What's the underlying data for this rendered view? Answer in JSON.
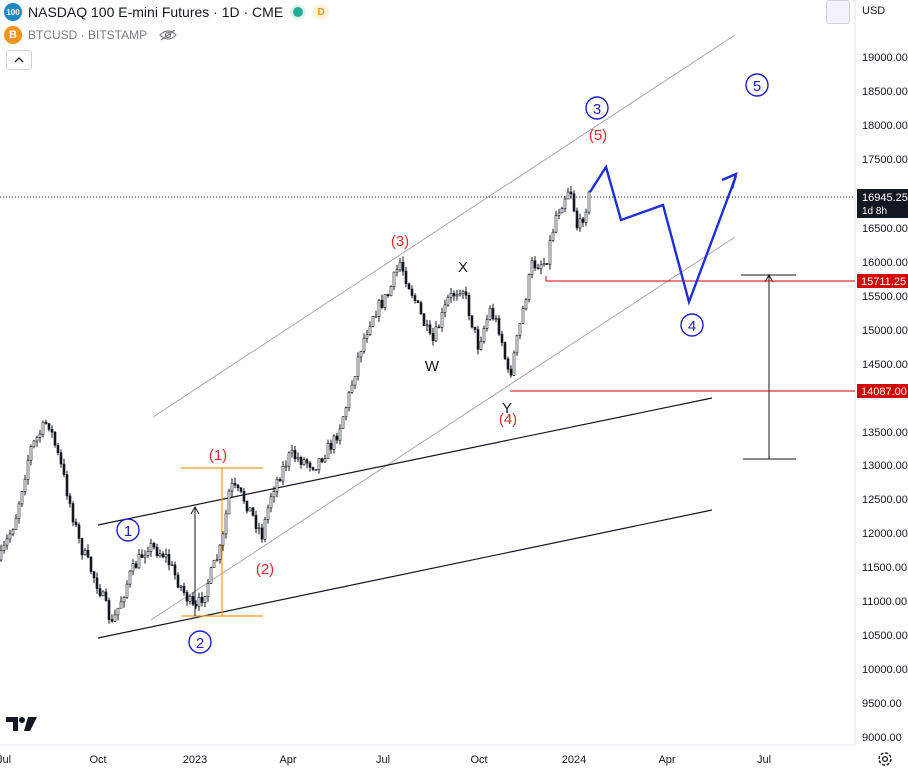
{
  "header": {
    "symbol_badge": "100",
    "title": "NASDAQ 100 E-mini Futures · 1D · CME",
    "status_letter": "D",
    "compare_symbol": "BTCUSD · BITSTAMP",
    "compare_badge": "B"
  },
  "currency": "USD",
  "price_axis": {
    "ticks": [
      "19000.00",
      "18500.00",
      "18000.00",
      "17500.00",
      "16500.00",
      "16000.00",
      "15500.00",
      "15000.00",
      "14500.00",
      "13500.00",
      "13000.00",
      "12500.00",
      "12000.00",
      "11500.00",
      "11000.00",
      "10500.00",
      "10000.00",
      "9500.00",
      "9000.00"
    ],
    "current_price": "16945.25",
    "countdown": "1d 8h",
    "level_high": "15711.25",
    "level_low": "14087.00"
  },
  "time_axis": {
    "ticks": [
      "Jul",
      "Oct",
      "2023",
      "Apr",
      "Jul",
      "Oct",
      "2024",
      "Apr",
      "Jul"
    ]
  },
  "wave_labels": {
    "circ_1": "1",
    "circ_2": "2",
    "circ_3": "3",
    "circ_4": "4",
    "circ_5": "5",
    "paren_1": "(1)",
    "paren_2": "(2)",
    "paren_3": "(3)",
    "paren_4": "(4)",
    "paren_5": "(5)",
    "w": "W",
    "x": "X",
    "y": "Y"
  },
  "colors": {
    "accent_blue": "#1b1fc9",
    "wave_red": "#d32f2f",
    "level_red": "#d50000",
    "fib_orange": "#f0a020",
    "channel_gray": "#a8a8ae",
    "projection_blue": "#1f2fd8",
    "candle": "#131722"
  },
  "icons": {
    "eye": "eye-crossed-icon",
    "collapse": "chevron-up-icon",
    "logo": "tradingview-logo-icon",
    "settings": "gear-icon"
  }
}
